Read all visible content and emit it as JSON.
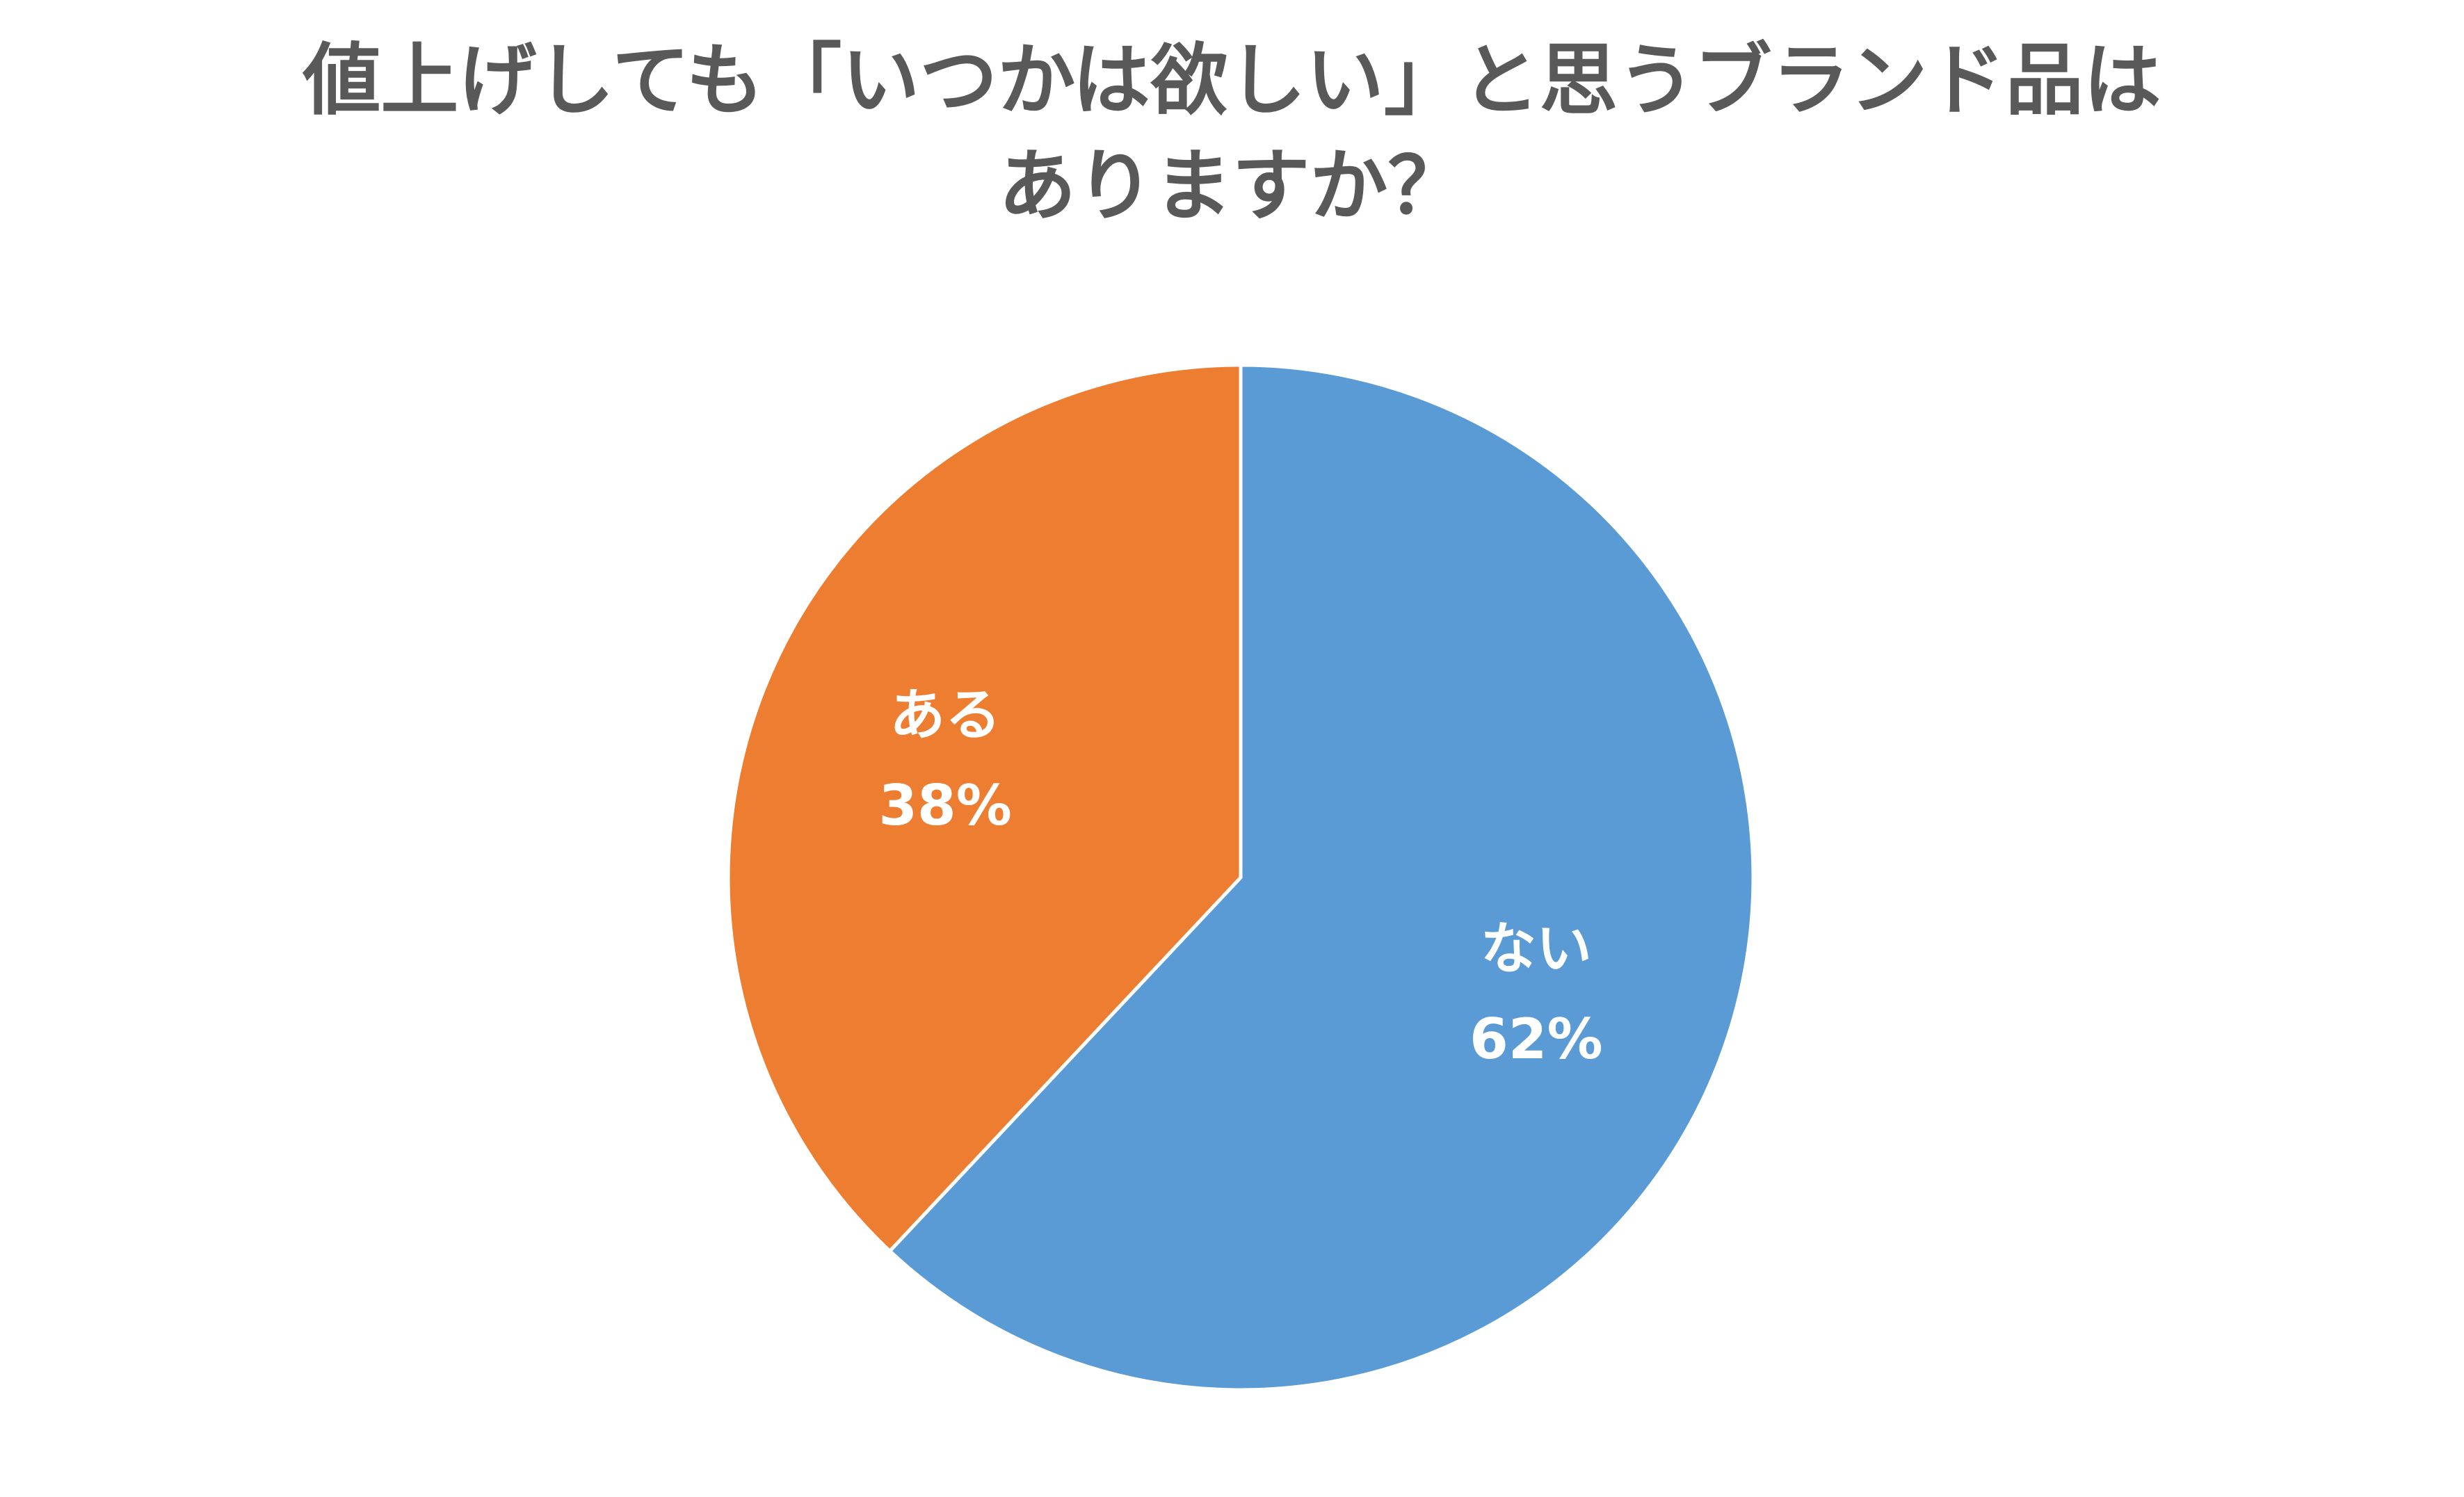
{
  "chart_data": {
    "type": "pie",
    "title_lines": [
      "値上げしても「いつかは欲しい」と思うブランド品は",
      "ありますか？"
    ],
    "slices": [
      {
        "category": "ない",
        "value": 62,
        "label": "62%",
        "color": "#5B9BD5"
      },
      {
        "category": "ある",
        "value": 38,
        "label": "38%",
        "color": "#ED7D31"
      }
    ],
    "start_angle": "12 o'clock",
    "direction": "clockwise",
    "legend": "none",
    "slice_border_color": "#ffffff"
  }
}
